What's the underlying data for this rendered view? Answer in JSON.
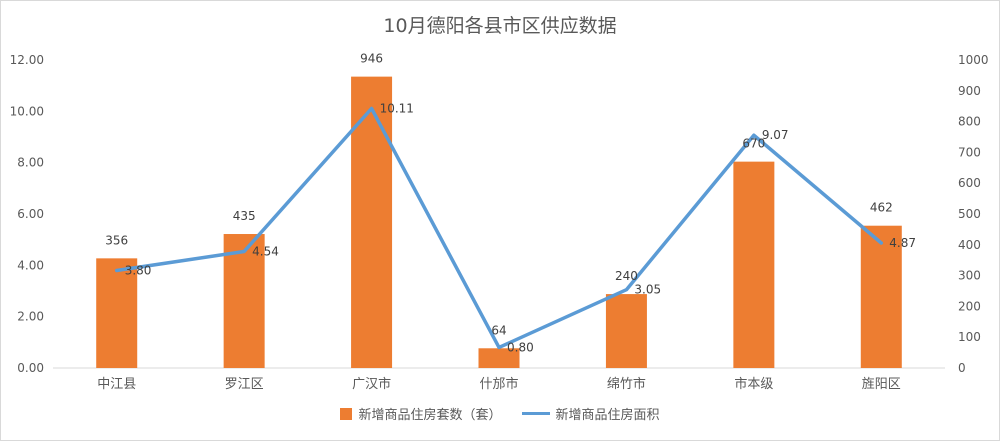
{
  "chart_data": {
    "type": "bar",
    "title": "10月德阳各县市区供应数据",
    "categories": [
      "中江县",
      "罗江区",
      "广汉市",
      "什邡市",
      "绵竹市",
      "市本级",
      "旌阳区"
    ],
    "series": [
      {
        "name": "新增商品住房套数（套）",
        "type": "bar",
        "axis": "right",
        "values": [
          356,
          435,
          946,
          64,
          240,
          670,
          462
        ],
        "labels": [
          "356",
          "435",
          "946",
          "64",
          "240",
          "670",
          "462"
        ],
        "color": "#ED7D31"
      },
      {
        "name": "新增商品住房面积",
        "type": "line",
        "axis": "left",
        "values": [
          3.8,
          4.54,
          10.11,
          0.8,
          3.05,
          9.07,
          4.87
        ],
        "labels": [
          "3.80",
          "4.54",
          "10.11",
          "0.80",
          "3.05",
          "9.07",
          "4.87"
        ],
        "color": "#5B9BD5"
      }
    ],
    "y_left": {
      "range": [
        0,
        12
      ],
      "ticks": [
        "0.00",
        "2.00",
        "4.00",
        "6.00",
        "8.00",
        "10.00",
        "12.00"
      ]
    },
    "y_right": {
      "range": [
        0,
        1000
      ],
      "ticks": [
        "0",
        "100",
        "200",
        "300",
        "400",
        "500",
        "600",
        "700",
        "800",
        "900",
        "1000"
      ]
    },
    "grid": false,
    "legend_position": "bottom"
  }
}
